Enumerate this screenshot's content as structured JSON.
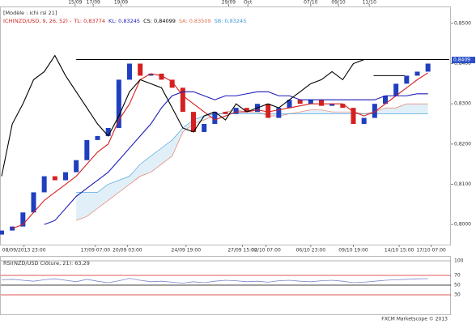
{
  "chart_data": [
    {
      "type": "candlestick",
      "title": "[Modèle : ichi rsi 21]",
      "indicator": "ICH(NZD/USD, 9, 26, 52) -",
      "footer": "FXCM Marketscope © 2013",
      "price_label": {
        "value": 0.8409,
        "label": "0,8409"
      },
      "up_color": "#1f3fbf",
      "down_color": "#d42020",
      "xlim": [
        0,
        42
      ],
      "ylim": [
        0.795,
        0.8542
      ],
      "yticks": [
        {
          "value": 0.8,
          "label": "0,8000"
        },
        {
          "value": 0.81,
          "label": "0,8100"
        },
        {
          "value": 0.82,
          "label": "0,8200"
        },
        {
          "value": 0.83,
          "label": "0,8300"
        },
        {
          "value": 0.84,
          "label": "0,8400"
        },
        {
          "value": 0.85,
          "label": "0,8500"
        }
      ],
      "xticks": [
        {
          "value": 2.1,
          "label": "08/09/2013 23:00"
        },
        {
          "value": 8.8,
          "label": "17/09 07:00"
        },
        {
          "value": 11.8,
          "label": "20/09 03:00"
        },
        {
          "value": 17.3,
          "label": "24/09 19:00"
        },
        {
          "value": 22.6,
          "label": "27/09 15:00"
        },
        {
          "value": 24.8,
          "label": "02/10 07:00"
        },
        {
          "value": 29,
          "label": "06/10 23:00"
        },
        {
          "value": 33,
          "label": "09/10 19:00"
        },
        {
          "value": 37.3,
          "label": "14/10 15:00"
        },
        {
          "value": 40.3,
          "label": "17/10 07:00"
        }
      ],
      "xticks_top": [
        {
          "value": 6.9,
          "label": "15/09"
        },
        {
          "value": 8.6,
          "label": "17/09"
        },
        {
          "value": 11.2,
          "label": "19/09"
        },
        {
          "value": 21.3,
          "label": "29/09"
        },
        {
          "value": 23.1,
          "label": "Oct"
        },
        {
          "value": 29,
          "label": "07/10"
        },
        {
          "value": 31.6,
          "label": "09/10"
        },
        {
          "value": 34.5,
          "label": "11/10"
        }
      ],
      "open": [
        0.7975,
        0.7985,
        0.7995,
        0.803,
        0.808,
        0.812,
        0.811,
        0.813,
        0.816,
        0.821,
        0.822,
        0.824,
        0.836,
        0.84,
        0.837,
        0.8375,
        0.836,
        0.834,
        0.828,
        0.823,
        0.825,
        0.828,
        0.8275,
        0.829,
        0.828,
        0.83,
        0.8265,
        0.829,
        0.831,
        0.83,
        0.831,
        0.8295,
        0.83,
        0.829,
        0.825,
        0.8265,
        0.83,
        0.832,
        0.835,
        0.837,
        0.838
      ],
      "close": [
        0.7985,
        0.7995,
        0.803,
        0.808,
        0.812,
        0.811,
        0.813,
        0.816,
        0.821,
        0.822,
        0.824,
        0.836,
        0.84,
        0.837,
        0.8375,
        0.836,
        0.834,
        0.828,
        0.823,
        0.825,
        0.828,
        0.8275,
        0.829,
        0.828,
        0.83,
        0.8265,
        0.829,
        0.831,
        0.83,
        0.831,
        0.8295,
        0.83,
        0.829,
        0.825,
        0.8265,
        0.83,
        0.832,
        0.835,
        0.837,
        0.838,
        0.84
      ],
      "series": [
        {
          "name": "TL: 0,83774",
          "color": "#d42020",
          "values": [
            null,
            0.799,
            0.8,
            0.803,
            0.806,
            0.808,
            0.81,
            0.812,
            0.815,
            0.818,
            0.82,
            0.826,
            0.83,
            0.836,
            0.8375,
            0.837,
            0.8355,
            0.832,
            0.83,
            0.828,
            0.826,
            0.827,
            0.828,
            0.828,
            0.8285,
            0.828,
            0.8285,
            0.829,
            0.8295,
            0.83,
            0.83,
            0.83,
            0.83,
            0.828,
            0.827,
            0.828,
            0.83,
            0.832,
            0.834,
            0.836,
            0.8377
          ]
        },
        {
          "name": "KL: 0,83245",
          "color": "#1a1ab8",
          "values": [
            null,
            null,
            null,
            null,
            0.8,
            0.801,
            0.804,
            0.807,
            0.809,
            0.811,
            0.813,
            0.816,
            0.819,
            0.822,
            0.825,
            0.829,
            0.832,
            0.833,
            0.833,
            0.832,
            0.831,
            0.832,
            0.832,
            0.8325,
            0.833,
            0.833,
            0.832,
            0.832,
            0.831,
            0.831,
            0.831,
            0.831,
            0.831,
            0.831,
            0.831,
            0.831,
            0.832,
            0.832,
            0.832,
            0.8325,
            0.8325
          ]
        },
        {
          "name": "CS: 0,84099",
          "color": "#000000",
          "values": [
            0.812,
            0.825,
            0.83,
            0.836,
            0.838,
            0.842,
            0.837,
            0.833,
            0.829,
            0.825,
            0.822,
            0.827,
            0.833,
            0.836,
            0.835,
            0.834,
            0.829,
            0.824,
            0.823,
            0.827,
            0.828,
            0.826,
            0.83,
            0.828,
            0.829,
            0.83,
            0.829,
            0.831,
            0.833,
            0.835,
            0.836,
            0.838,
            0.836,
            0.84,
            0.841,
            null,
            null,
            null,
            null,
            null,
            null
          ]
        },
        {
          "name": "SA: 0,83509",
          "color": "#e07050",
          "values": [
            null,
            null,
            null,
            null,
            null,
            null,
            null,
            0.801,
            0.802,
            0.804,
            0.806,
            0.808,
            0.81,
            0.812,
            0.813,
            0.815,
            0.817,
            0.823,
            0.825,
            0.826,
            0.827,
            0.828,
            0.8285,
            0.828,
            0.828,
            0.827,
            0.827,
            0.8275,
            0.828,
            0.8285,
            0.8285,
            0.828,
            0.828,
            0.828,
            0.8275,
            0.828,
            0.829,
            0.829,
            0.83,
            0.83,
            0.83
          ]
        },
        {
          "name": "SB: 0,83245",
          "color": "#3a9ad9",
          "values": [
            null,
            null,
            null,
            null,
            null,
            null,
            null,
            0.808,
            0.808,
            0.808,
            0.81,
            0.811,
            0.812,
            0.815,
            0.817,
            0.819,
            0.821,
            0.824,
            0.826,
            0.827,
            0.8275,
            0.8275,
            0.8275,
            0.8275,
            0.8275,
            0.8275,
            0.8275,
            0.8275,
            0.8275,
            0.8275,
            0.8275,
            0.8275,
            0.8275,
            0.8275,
            0.8275,
            0.8275,
            0.8275,
            0.8275,
            0.8275,
            0.8275,
            0.8275
          ]
        }
      ],
      "levels": [
        {
          "y": 0.841,
          "x": [
            7,
            42
          ]
        },
        {
          "y": 0.837,
          "x": [
            34.9,
            37.8
          ]
        }
      ]
    },
    {
      "type": "line",
      "title": "RSI(NZD/USD Clôture, 21): 63,29",
      "color": "#7a86c8",
      "xlim": [
        0,
        42
      ],
      "ylim": [
        -10,
        110
      ],
      "yticks": [
        30,
        50,
        70,
        100
      ],
      "tick_colors": [
        "#d42020",
        "#000000",
        "#d42020",
        "#999999"
      ],
      "values": [
        61,
        62,
        60,
        58,
        61,
        63,
        60,
        57,
        62,
        58,
        55,
        59,
        64,
        60,
        57,
        58,
        56,
        54,
        57,
        55,
        58,
        60,
        59,
        57,
        58,
        56,
        59,
        60,
        58,
        57,
        59,
        60,
        58,
        55,
        56,
        58,
        60,
        61,
        62,
        63,
        63.29
      ]
    }
  ]
}
